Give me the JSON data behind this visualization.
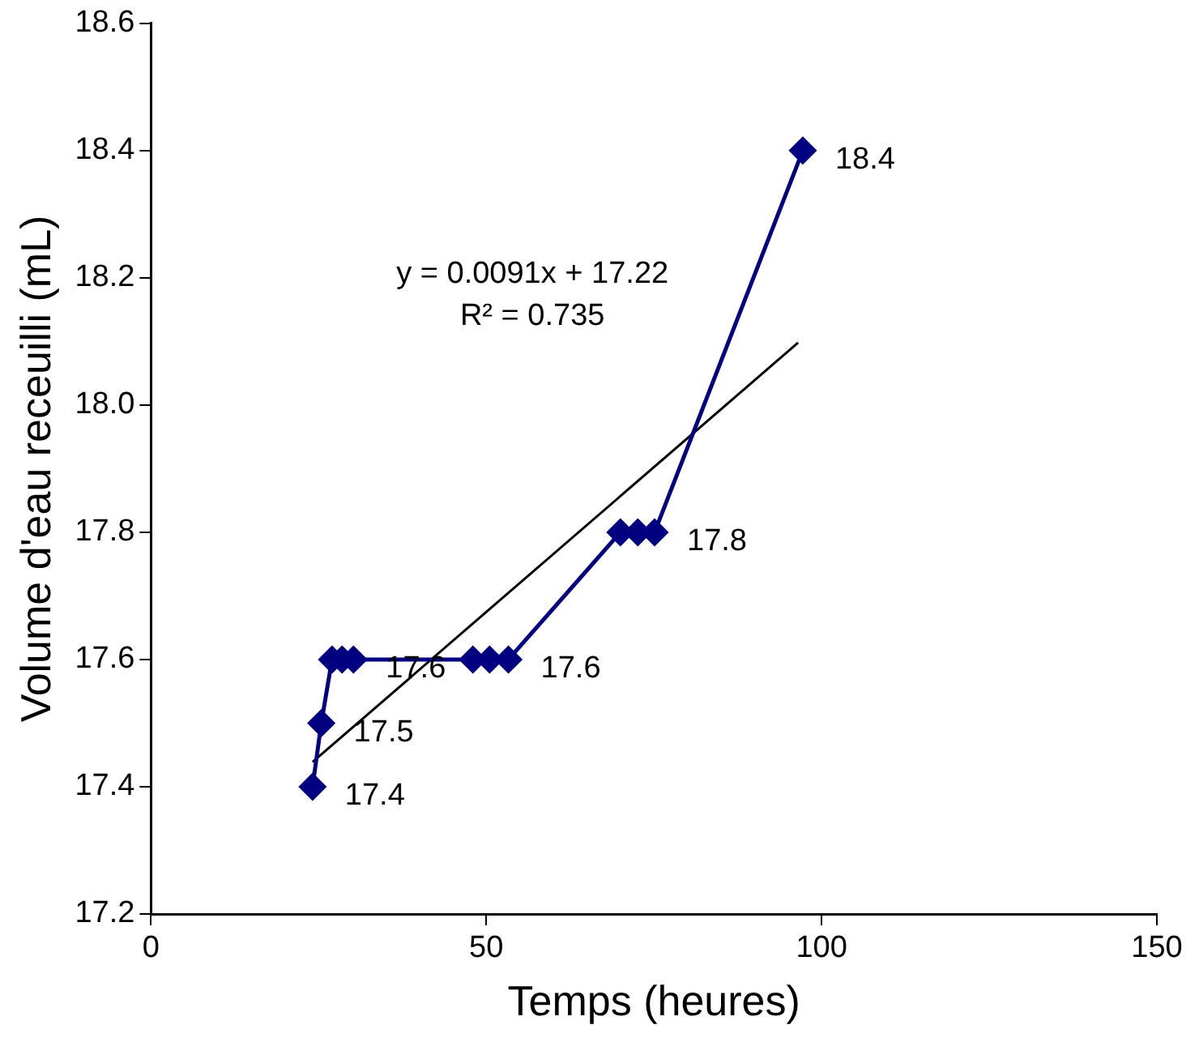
{
  "chart_data": {
    "type": "line",
    "xlabel": "Temps (heures)",
    "ylabel": "Volume d'eau receuilli (mL)",
    "xlim": [
      0,
      150
    ],
    "xticks": [
      0,
      50,
      100,
      150
    ],
    "ylim": [
      17.2,
      18.6
    ],
    "yticks": [
      17.2,
      17.4,
      17.6,
      17.8,
      {
        "value": 18,
        "label": "18.0"
      },
      18.2,
      18.4,
      18.6
    ],
    "grid": false,
    "legend": false,
    "marker": "diamond",
    "line_style": "solid",
    "series": [
      {
        "color": "#000080",
        "x": [
          24.1,
          25.4,
          27,
          28.5,
          30.2,
          48,
          50.5,
          53.3,
          70,
          72.6,
          75.1,
          97.2
        ],
        "values": [
          17.4,
          17.5,
          17.6,
          17.6,
          17.6,
          17.6,
          17.6,
          17.6,
          17.8,
          17.8,
          17.8,
          18.4
        ],
        "value_labels": [
          "17.4",
          "17.5",
          null,
          null,
          "17.6",
          null,
          null,
          "17.6",
          null,
          null,
          "17.8",
          "18.4"
        ]
      },
      {
        "type": "line",
        "color": "#000000",
        "marker": "none",
        "x": [
          24.1,
          96.5
        ],
        "values": [
          17.439,
          18.098
        ]
      }
    ],
    "annotations": [
      "y = 0.0091x + 17.22",
      "R² = 0.735"
    ]
  }
}
